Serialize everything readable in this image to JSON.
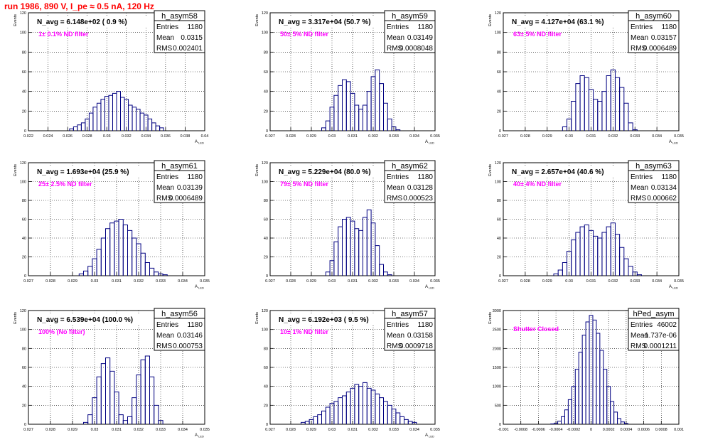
{
  "page": {
    "title": "run 1986,   890 V, I_pe ≈ 0.5 nA, 120 Hz",
    "title_color": "#ff0000",
    "hist_color": "#000080",
    "annotation_color": "#ff00ff"
  },
  "chart_data": [
    {
      "type": "bar",
      "name": "h_asym58",
      "navg": "N_avg = 6.148e+02 ( 0.9 %)",
      "filter": "1± 0.1% ND filter",
      "stats": {
        "entries_label": "Entries",
        "entries": "1180",
        "mean_label": "Mean",
        "mean": "0.0315",
        "rms_label": "RMS",
        "rms": "0.002401"
      },
      "xlabel": "A_{LED}",
      "ylabel": "Events",
      "xlim": [
        0.022,
        0.04
      ],
      "ylim": [
        0,
        120
      ],
      "xticks": [
        "0.022",
        "0.024",
        "0.026",
        "0.028",
        "0.03",
        "0.032",
        "0.034",
        "0.036",
        "0.038",
        "0.04"
      ],
      "yticks": [
        "0",
        "20",
        "40",
        "60",
        "80",
        "100",
        "120"
      ],
      "x": [
        0.0264,
        0.0268,
        0.0272,
        0.0276,
        0.028,
        0.0284,
        0.0288,
        0.0292,
        0.0296,
        0.03,
        0.0304,
        0.0308,
        0.0312,
        0.0316,
        0.032,
        0.0324,
        0.0328,
        0.0332,
        0.0336,
        0.034,
        0.0344,
        0.0348,
        0.0352,
        0.0356
      ],
      "values": [
        2,
        4,
        6,
        8,
        12,
        18,
        24,
        28,
        32,
        35,
        36,
        38,
        40,
        34,
        32,
        26,
        24,
        22,
        18,
        16,
        12,
        8,
        5,
        3
      ]
    },
    {
      "type": "bar",
      "name": "h_asym59",
      "navg": "N_avg = 3.317e+04 (50.7 %)",
      "filter": "50± 5% ND filter",
      "stats": {
        "entries_label": "Entries",
        "entries": "1180",
        "mean_label": "Mean",
        "mean": "0.03149",
        "rms_label": "RMS",
        "rms": "0.0008048"
      },
      "xlabel": "A_{LED}",
      "ylabel": "Events",
      "xlim": [
        0.027,
        0.035
      ],
      "ylim": [
        0,
        120
      ],
      "xticks": [
        "0.027",
        "0.028",
        "0.029",
        "0.03",
        "0.031",
        "0.032",
        "0.033",
        "0.034",
        "0.035"
      ],
      "yticks": [
        "0",
        "20",
        "40",
        "60",
        "80",
        "100",
        "120"
      ],
      "x": [
        0.0296,
        0.0298,
        0.03,
        0.0302,
        0.0304,
        0.0306,
        0.0308,
        0.031,
        0.0312,
        0.0314,
        0.0316,
        0.0318,
        0.032,
        0.0322,
        0.0324,
        0.0326,
        0.0328,
        0.033,
        0.0332
      ],
      "values": [
        3,
        10,
        24,
        36,
        46,
        52,
        50,
        38,
        26,
        22,
        26,
        40,
        55,
        62,
        48,
        28,
        12,
        4,
        1
      ]
    },
    {
      "type": "bar",
      "name": "h_asym60",
      "navg": "N_avg = 4.127e+04 (63.1 %)",
      "filter": "63± 5% ND filter",
      "stats": {
        "entries_label": "Entries",
        "entries": "1180",
        "mean_label": "Mean",
        "mean": "0.03157",
        "rms_label": "RMS",
        "rms": "0.0006489"
      },
      "xlabel": "A_{LED}",
      "ylabel": "Events",
      "xlim": [
        0.027,
        0.035
      ],
      "ylim": [
        0,
        120
      ],
      "xticks": [
        "0.027",
        "0.028",
        "0.029",
        "0.03",
        "0.031",
        "0.032",
        "0.033",
        "0.034",
        "0.035"
      ],
      "yticks": [
        "0",
        "20",
        "40",
        "60",
        "80",
        "100",
        "120"
      ],
      "x": [
        0.0298,
        0.03,
        0.0302,
        0.0304,
        0.0306,
        0.0308,
        0.031,
        0.0312,
        0.0314,
        0.0316,
        0.0318,
        0.032,
        0.0322,
        0.0324,
        0.0326,
        0.0328,
        0.033
      ],
      "values": [
        4,
        12,
        30,
        48,
        56,
        54,
        42,
        32,
        30,
        40,
        56,
        62,
        54,
        44,
        28,
        8,
        1
      ]
    },
    {
      "type": "bar",
      "name": "h_asym61",
      "navg": "N_avg = 1.693e+04 (25.9 %)",
      "filter": "25± 2.5% ND filter",
      "stats": {
        "entries_label": "Entries",
        "entries": "1180",
        "mean_label": "Mean",
        "mean": "0.03139",
        "rms_label": "RMS",
        "rms": "0.0006489"
      },
      "xlabel": "A_{LED}",
      "ylabel": "Events",
      "xlim": [
        0.027,
        0.035
      ],
      "ylim": [
        0,
        120
      ],
      "xticks": [
        "0.027",
        "0.028",
        "0.029",
        "0.03",
        "0.031",
        "0.032",
        "0.033",
        "0.034",
        "0.035"
      ],
      "yticks": [
        "0",
        "20",
        "40",
        "60",
        "80",
        "100",
        "120"
      ],
      "x": [
        0.0294,
        0.0296,
        0.0298,
        0.03,
        0.0302,
        0.0304,
        0.0306,
        0.0308,
        0.031,
        0.0312,
        0.0314,
        0.0316,
        0.0318,
        0.032,
        0.0322,
        0.0324,
        0.0326,
        0.0328,
        0.033,
        0.0332
      ],
      "values": [
        2,
        5,
        10,
        18,
        28,
        40,
        50,
        56,
        58,
        60,
        54,
        48,
        40,
        34,
        24,
        14,
        8,
        4,
        2,
        1
      ]
    },
    {
      "type": "bar",
      "name": "h_asym62",
      "navg": "N_avg = 5.229e+04 (80.0 %)",
      "filter": "79± 5% ND filter",
      "stats": {
        "entries_label": "Entries",
        "entries": "1180",
        "mean_label": "Mean",
        "mean": "0.03128",
        "rms_label": "RMS",
        "rms": "0.000523"
      },
      "xlabel": "A_{LED}",
      "ylabel": "Events",
      "xlim": [
        0.027,
        0.035
      ],
      "ylim": [
        0,
        120
      ],
      "xticks": [
        "0.027",
        "0.028",
        "0.029",
        "0.03",
        "0.031",
        "0.032",
        "0.033",
        "0.034",
        "0.035"
      ],
      "yticks": [
        "0",
        "20",
        "40",
        "60",
        "80",
        "100",
        "120"
      ],
      "x": [
        0.0298,
        0.03,
        0.0302,
        0.0304,
        0.0306,
        0.0308,
        0.031,
        0.0312,
        0.0314,
        0.0316,
        0.0318,
        0.032,
        0.0322,
        0.0324,
        0.0326,
        0.0328
      ],
      "values": [
        4,
        16,
        36,
        52,
        60,
        62,
        58,
        50,
        48,
        62,
        70,
        56,
        32,
        12,
        4,
        1
      ]
    },
    {
      "type": "bar",
      "name": "h_asym63",
      "navg": "N_avg = 2.657e+04 (40.6 %)",
      "filter": "40± 4% ND filter",
      "stats": {
        "entries_label": "Entries",
        "entries": "1180",
        "mean_label": "Mean",
        "mean": "0.03134",
        "rms_label": "RMS",
        "rms": "0.000662"
      },
      "xlabel": "A_{LED}",
      "ylabel": "Events",
      "xlim": [
        0.027,
        0.035
      ],
      "ylim": [
        0,
        120
      ],
      "xticks": [
        "0.027",
        "0.028",
        "0.029",
        "0.03",
        "0.031",
        "0.032",
        "0.033",
        "0.034",
        "0.035"
      ],
      "yticks": [
        "0",
        "20",
        "40",
        "60",
        "80",
        "100",
        "120"
      ],
      "x": [
        0.0294,
        0.0296,
        0.0298,
        0.03,
        0.0302,
        0.0304,
        0.0306,
        0.0308,
        0.031,
        0.0312,
        0.0314,
        0.0316,
        0.0318,
        0.032,
        0.0322,
        0.0324,
        0.0326,
        0.0328,
        0.033,
        0.0332
      ],
      "values": [
        2,
        6,
        14,
        26,
        38,
        46,
        52,
        54,
        48,
        42,
        40,
        46,
        52,
        56,
        44,
        30,
        18,
        10,
        4,
        1
      ]
    },
    {
      "type": "bar",
      "name": "h_asym56",
      "navg": "N_avg = 6.539e+04 (100.0 %)",
      "filter": "100% (No filter)",
      "stats": {
        "entries_label": "Entries",
        "entries": "1180",
        "mean_label": "Mean",
        "mean": "0.03146",
        "rms_label": "RMS",
        "rms": "0.000753"
      },
      "xlabel": "A_{LED}",
      "ylabel": "Events",
      "xlim": [
        0.027,
        0.035
      ],
      "ylim": [
        0,
        120
      ],
      "xticks": [
        "0.027",
        "0.028",
        "0.029",
        "0.03",
        "0.031",
        "0.032",
        "0.033",
        "0.034",
        "0.035"
      ],
      "yticks": [
        "0",
        "20",
        "40",
        "60",
        "80",
        "100",
        "120"
      ],
      "x": [
        0.0296,
        0.0298,
        0.03,
        0.0302,
        0.0304,
        0.0306,
        0.0308,
        0.031,
        0.0312,
        0.0314,
        0.0316,
        0.0318,
        0.032,
        0.0322,
        0.0324,
        0.0326,
        0.0328,
        0.033
      ],
      "values": [
        2,
        10,
        28,
        50,
        64,
        70,
        56,
        34,
        10,
        4,
        8,
        28,
        52,
        68,
        72,
        50,
        20,
        4
      ]
    },
    {
      "type": "bar",
      "name": "h_asym57",
      "navg": "N_avg = 6.192e+03 ( 9.5 %)",
      "filter": "10± 1% ND filter",
      "stats": {
        "entries_label": "Entries",
        "entries": "1180",
        "mean_label": "Mean",
        "mean": "0.03158",
        "rms_label": "RMS",
        "rms": "0.0009718"
      },
      "xlabel": "A_{LED}",
      "ylabel": "Events",
      "xlim": [
        0.027,
        0.035
      ],
      "ylim": [
        0,
        120
      ],
      "xticks": [
        "0.027",
        "0.028",
        "0.029",
        "0.03",
        "0.031",
        "0.032",
        "0.033",
        "0.034",
        "0.035"
      ],
      "yticks": [
        "0",
        "20",
        "40",
        "60",
        "80",
        "100",
        "120"
      ],
      "x": [
        0.0286,
        0.0288,
        0.029,
        0.0292,
        0.0294,
        0.0296,
        0.0298,
        0.03,
        0.0302,
        0.0304,
        0.0306,
        0.0308,
        0.031,
        0.0312,
        0.0314,
        0.0316,
        0.0318,
        0.032,
        0.0322,
        0.0324,
        0.0326,
        0.0328,
        0.033,
        0.0332,
        0.0334,
        0.0336,
        0.0338,
        0.034
      ],
      "values": [
        2,
        3,
        5,
        8,
        10,
        14,
        18,
        22,
        24,
        28,
        30,
        34,
        38,
        42,
        40,
        44,
        38,
        36,
        32,
        28,
        24,
        20,
        16,
        12,
        8,
        5,
        3,
        2
      ]
    },
    {
      "type": "bar",
      "name": "hPed_asym",
      "navg": "",
      "filter": "Shutter Closed",
      "stats": {
        "entries_label": "Entries",
        "entries": "46002",
        "mean_label": "Mean",
        "mean": "-1.737e-06",
        "rms_label": "RMS",
        "rms": "0.0001211"
      },
      "xlabel": "",
      "ylabel": "Events",
      "xlim": [
        -0.001,
        0.001
      ],
      "ylim": [
        0,
        3000
      ],
      "xticks": [
        "-0.001",
        "-0.0008",
        "-0.0006",
        "-0.0004",
        "-0.0002",
        "0",
        "0.0002",
        "0.0004",
        "0.0006",
        "0.0008",
        "0.001"
      ],
      "yticks": [
        "0",
        "500",
        "1000",
        "1500",
        "2000",
        "2500",
        "3000"
      ],
      "x": [
        -0.00044,
        -0.0004,
        -0.00036,
        -0.00032,
        -0.00028,
        -0.00024,
        -0.0002,
        -0.00016,
        -0.00012,
        -8e-05,
        -4e-05,
        0,
        4e-05,
        8e-05,
        0.00012,
        0.00016,
        0.0002,
        0.00024,
        0.00028,
        0.00032,
        0.00036,
        0.0004
      ],
      "values": [
        10,
        30,
        80,
        200,
        380,
        650,
        1000,
        1450,
        1900,
        2350,
        2700,
        2870,
        2750,
        2400,
        1950,
        1450,
        1000,
        600,
        320,
        150,
        60,
        20
      ]
    }
  ]
}
